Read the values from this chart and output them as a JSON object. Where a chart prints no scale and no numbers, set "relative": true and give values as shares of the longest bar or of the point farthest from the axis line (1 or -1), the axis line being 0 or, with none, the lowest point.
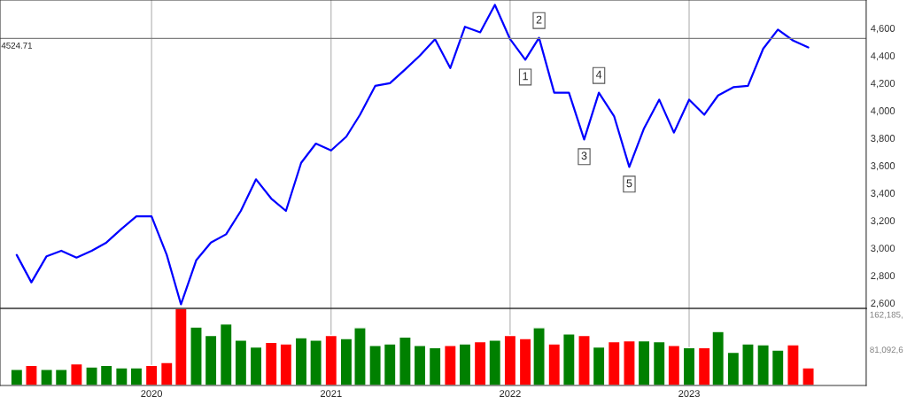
{
  "chart_data": [
    {
      "type": "line",
      "x": [
        "2019-04",
        "2019-05",
        "2019-06",
        "2019-07",
        "2019-08",
        "2019-09",
        "2019-10",
        "2019-11",
        "2019-12",
        "2020-01",
        "2020-02",
        "2020-03",
        "2020-04",
        "2020-05",
        "2020-06",
        "2020-07",
        "2020-08",
        "2020-09",
        "2020-10",
        "2020-11",
        "2020-12",
        "2021-01",
        "2021-02",
        "2021-03",
        "2021-04",
        "2021-05",
        "2021-06",
        "2021-07",
        "2021-08",
        "2021-09",
        "2021-10",
        "2021-11",
        "2021-12",
        "2022-01",
        "2022-02",
        "2022-03",
        "2022-04",
        "2022-05",
        "2022-06",
        "2022-07",
        "2022-08",
        "2022-09",
        "2022-10",
        "2022-11",
        "2022-12",
        "2023-01",
        "2023-02",
        "2023-03",
        "2023-04",
        "2023-05",
        "2023-06",
        "2023-07",
        "2023-08",
        "2023-09"
      ],
      "series": [
        {
          "color": "#0000ff",
          "values": [
            2950,
            2750,
            2940,
            2980,
            2930,
            2980,
            3040,
            3140,
            3230,
            3230,
            2950,
            2590,
            2910,
            3040,
            3100,
            3270,
            3500,
            3360,
            3270,
            3620,
            3760,
            3710,
            3810,
            3970,
            4180,
            4200,
            4300,
            4400,
            4520,
            4310,
            4610,
            4570,
            4770,
            4520,
            4370,
            4530,
            4130,
            4130,
            3790,
            4130,
            3960,
            3590,
            3870,
            4080,
            3840,
            4080,
            3970,
            4110,
            4170,
            4180,
            4450,
            4590,
            4510,
            4460
          ]
        }
      ],
      "xlim": [
        "2019-02-26",
        "2023-12-28"
      ],
      "xticks": [
        {
          "value": "2020-01-01",
          "label": null
        },
        {
          "value": "2021-01-01",
          "label": null
        },
        {
          "value": "2022-01-01",
          "label": null
        },
        {
          "value": "2023-01-01",
          "label": null
        }
      ],
      "ylim": [
        2560,
        4805
      ],
      "yticks": [
        {
          "value": 2600,
          "label": "2,600"
        },
        {
          "value": 2800,
          "label": "2,800"
        },
        {
          "value": 3000,
          "label": "3,000"
        },
        {
          "value": 3200,
          "label": "3,200"
        },
        {
          "value": 3400,
          "label": "3,400"
        },
        {
          "value": 3600,
          "label": "3,600"
        },
        {
          "value": 3800,
          "label": "3,800"
        },
        {
          "value": 4000,
          "label": "4,000"
        },
        {
          "value": 4200,
          "label": "4,200"
        },
        {
          "value": 4400,
          "label": "4,400"
        },
        {
          "value": 4600,
          "label": "4,600"
        }
      ],
      "tick_labels": "y",
      "grid": "x",
      "ref_lines": [
        {
          "axis": "y",
          "value": 4524.71,
          "label": "4524.71",
          "color": "#808080"
        }
      ],
      "annotations": [
        {
          "text": "1",
          "x": "2022-02",
          "y": 4370
        },
        {
          "text": "2",
          "x": "2022-03",
          "y": 4530
        },
        {
          "text": "3",
          "x": "2022-06",
          "y": 3790
        },
        {
          "text": "4",
          "x": "2022-07",
          "y": 4130
        },
        {
          "text": "5",
          "x": "2022-09",
          "y": 3590
        }
      ]
    },
    {
      "type": "bar",
      "x": [
        "2019-04",
        "2019-05",
        "2019-06",
        "2019-07",
        "2019-08",
        "2019-09",
        "2019-10",
        "2019-11",
        "2019-12",
        "2020-01",
        "2020-02",
        "2020-03",
        "2020-04",
        "2020-05",
        "2020-06",
        "2020-07",
        "2020-08",
        "2020-09",
        "2020-10",
        "2020-11",
        "2020-12",
        "2021-01",
        "2021-02",
        "2021-03",
        "2021-04",
        "2021-05",
        "2021-06",
        "2021-07",
        "2021-08",
        "2021-09",
        "2021-10",
        "2021-11",
        "2021-12",
        "2022-01",
        "2022-02",
        "2022-03",
        "2022-04",
        "2022-05",
        "2022-06",
        "2022-07",
        "2022-08",
        "2022-09",
        "2022-10",
        "2022-11",
        "2022-12",
        "2023-01",
        "2023-02",
        "2023-03",
        "2023-04",
        "2023-05",
        "2023-06",
        "2023-07",
        "2023-08",
        "2023-09"
      ],
      "relative": true,
      "values": [
        0.21,
        0.26,
        0.21,
        0.21,
        0.28,
        0.24,
        0.26,
        0.23,
        0.23,
        0.26,
        0.3,
        1,
        0.76,
        0.65,
        0.8,
        0.59,
        0.5,
        0.56,
        0.54,
        0.62,
        0.59,
        0.65,
        0.61,
        0.75,
        0.52,
        0.54,
        0.63,
        0.52,
        0.49,
        0.52,
        0.54,
        0.57,
        0.59,
        0.65,
        0.61,
        0.75,
        0.54,
        0.67,
        0.65,
        0.5,
        0.57,
        0.58,
        0.58,
        0.57,
        0.52,
        0.49,
        0.49,
        0.7,
        0.43,
        0.54,
        0.53,
        0.46,
        0.53,
        0.23
      ],
      "annotations": [
        "162,185,",
        "81,092,6"
      ],
      "colors": [
        "#008000",
        "#ff0000",
        "#008000",
        "#008000",
        "#ff0000",
        "#008000",
        "#008000",
        "#008000",
        "#008000",
        "#ff0000",
        "#ff0000",
        "#ff0000",
        "#008000",
        "#008000",
        "#008000",
        "#008000",
        "#008000",
        "#ff0000",
        "#ff0000",
        "#008000",
        "#008000",
        "#ff0000",
        "#008000",
        "#008000",
        "#008000",
        "#008000",
        "#008000",
        "#008000",
        "#008000",
        "#ff0000",
        "#008000",
        "#ff0000",
        "#008000",
        "#ff0000",
        "#ff0000",
        "#008000",
        "#ff0000",
        "#008000",
        "#ff0000",
        "#008000",
        "#ff0000",
        "#ff0000",
        "#008000",
        "#008000",
        "#ff0000",
        "#008000",
        "#ff0000",
        "#008000",
        "#008000",
        "#008000",
        "#008000",
        "#008000",
        "#ff0000",
        "#ff0000"
      ],
      "xlim": [
        "2019-02-26",
        "2023-12-28"
      ],
      "xticks": [
        {
          "value": "2020-01-01",
          "label": "2020"
        },
        {
          "value": "2021-01-01",
          "label": "2021"
        },
        {
          "value": "2022-01-01",
          "label": "2022"
        },
        {
          "value": "2023-01-01",
          "label": "2023"
        }
      ],
      "grid": "x"
    }
  ]
}
